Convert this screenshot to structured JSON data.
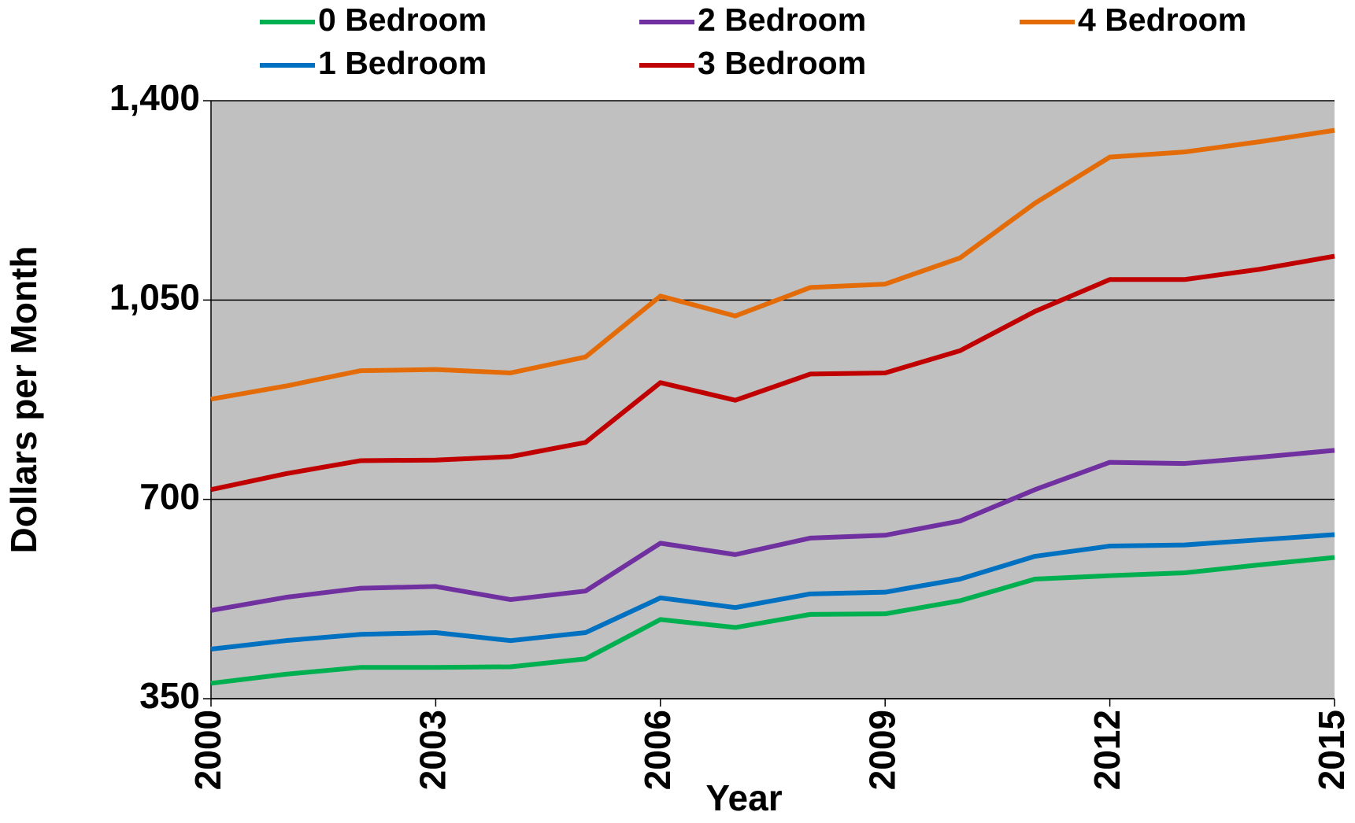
{
  "chart_data": {
    "type": "line",
    "x_label": "Year",
    "y_label": "Dollars per Month",
    "x": [
      2000,
      2001,
      2002,
      2003,
      2004,
      2005,
      2006,
      2007,
      2008,
      2009,
      2010,
      2011,
      2012,
      2013,
      2014,
      2015
    ],
    "series": [
      {
        "name": "0 Bedroom",
        "color": "#00b050",
        "values": [
          377,
          393,
          405,
          405,
          406,
          420,
          489,
          475,
          498,
          499,
          522,
          560,
          566,
          571,
          585,
          598
        ]
      },
      {
        "name": "1 Bedroom",
        "color": "#0070c0",
        "values": [
          437,
          452,
          463,
          466,
          452,
          466,
          527,
          510,
          534,
          537,
          560,
          600,
          618,
          620,
          629,
          638
        ]
      },
      {
        "name": "2 Bedroom",
        "color": "#7030a0",
        "values": [
          505,
          528,
          544,
          547,
          524,
          539,
          623,
          603,
          632,
          637,
          662,
          717,
          765,
          763,
          774,
          786
        ]
      },
      {
        "name": "3 Bedroom",
        "color": "#c00000",
        "values": [
          717,
          745,
          768,
          769,
          775,
          800,
          905,
          874,
          920,
          922,
          961,
          1030,
          1086,
          1086,
          1104,
          1127
        ]
      },
      {
        "name": "4 Bedroom",
        "color": "#e36c09",
        "values": [
          876,
          899,
          926,
          928,
          922,
          950,
          1057,
          1022,
          1072,
          1078,
          1124,
          1220,
          1301,
          1310,
          1328,
          1348
        ]
      }
    ],
    "xlim": [
      2000,
      2015
    ],
    "xticks": [
      2000,
      2003,
      2006,
      2009,
      2012,
      2015
    ],
    "ylim": [
      350,
      1400
    ],
    "yticks": [
      350,
      700,
      {
        "value": 1050,
        "label": "1,050"
      },
      {
        "value": 1400,
        "label": "1,400"
      }
    ],
    "grid": true,
    "plot_background": "#c0c0c0"
  }
}
